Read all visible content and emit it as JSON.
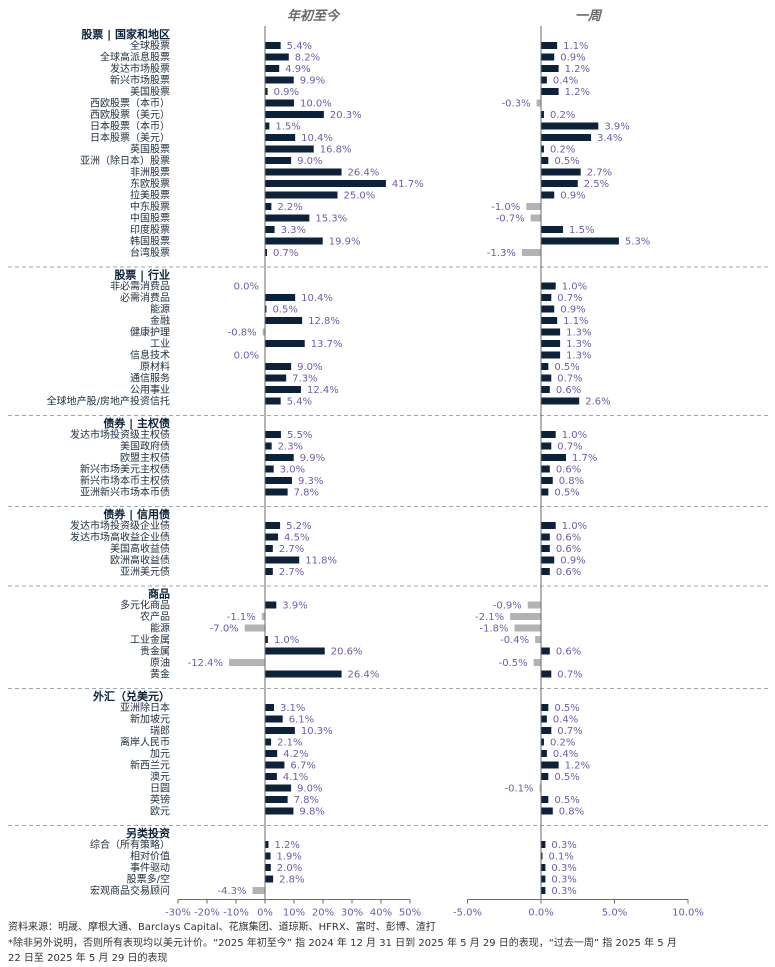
{
  "chart_data": {
    "type": "bar",
    "orientation": "horizontal",
    "panel_titles": [
      "年初至今",
      "一周"
    ],
    "axes": {
      "ytd": {
        "ticks": [
          -30,
          -20,
          -10,
          0,
          10,
          20,
          30,
          40,
          50
        ],
        "tick_labels": [
          "-30%",
          "-20%",
          "-10%",
          "0%",
          "10%",
          "20%",
          "30%",
          "40%",
          "50%"
        ],
        "xlim": [
          -30,
          50
        ]
      },
      "week": {
        "ticks": [
          -5,
          0,
          5,
          10
        ],
        "tick_labels": [
          "-5.0%",
          "0.0%",
          "5.0%",
          "10.0%"
        ],
        "xlim": [
          -5,
          10
        ]
      }
    },
    "colors": {
      "positive": "#0d2239",
      "negative": "#b3b3b3",
      "value_text": "#6b5fa6"
    },
    "groups": [
      {
        "title": "股票 | 国家和地区",
        "rows": [
          {
            "label": "全球股票",
            "ytd": 5.4,
            "week": 1.1
          },
          {
            "label": "全球高派息股票",
            "ytd": 8.2,
            "week": 0.9
          },
          {
            "label": "发达市场股票",
            "ytd": 4.9,
            "week": 1.2
          },
          {
            "label": "新兴市场股票",
            "ytd": 9.9,
            "week": 0.4
          },
          {
            "label": "美国股票",
            "ytd": 0.9,
            "week": 1.2
          },
          {
            "label": "西欧股票（本币）",
            "ytd": 10.0,
            "week": -0.3
          },
          {
            "label": "西欧股票（美元）",
            "ytd": 20.3,
            "week": 0.2
          },
          {
            "label": "日本股票（本币）",
            "ytd": 1.5,
            "week": 3.9
          },
          {
            "label": "日本股票（美元）",
            "ytd": 10.4,
            "week": 3.4
          },
          {
            "label": "英国股票",
            "ytd": 16.8,
            "week": 0.2
          },
          {
            "label": "亚洲（除日本）股票",
            "ytd": 9.0,
            "week": 0.5
          },
          {
            "label": "非洲股票",
            "ytd": 26.4,
            "week": 2.7
          },
          {
            "label": "东欧股票",
            "ytd": 41.7,
            "week": 2.5
          },
          {
            "label": "拉美股票",
            "ytd": 25.0,
            "week": 0.9
          },
          {
            "label": "中东股票",
            "ytd": 2.2,
            "week": -1.0
          },
          {
            "label": "中国股票",
            "ytd": 15.3,
            "week": -0.7
          },
          {
            "label": "印度股票",
            "ytd": 3.3,
            "week": 1.5
          },
          {
            "label": "韩国股票",
            "ytd": 19.9,
            "week": 5.3
          },
          {
            "label": "台湾股票",
            "ytd": 0.7,
            "week": -1.3
          }
        ]
      },
      {
        "title": "股票 | 行业",
        "rows": [
          {
            "label": "非必需消费品",
            "ytd": 0.0,
            "week": 1.0
          },
          {
            "label": "必需消费品",
            "ytd": 10.4,
            "week": 0.7
          },
          {
            "label": "能源",
            "ytd": 0.5,
            "week": 0.9
          },
          {
            "label": "金融",
            "ytd": 12.8,
            "week": 1.1
          },
          {
            "label": "健康护理",
            "ytd": -0.8,
            "week": 1.3
          },
          {
            "label": "工业",
            "ytd": 13.7,
            "week": 1.3
          },
          {
            "label": "信息技术",
            "ytd": 0.0,
            "week": 1.3
          },
          {
            "label": "原材料",
            "ytd": 9.0,
            "week": 0.5
          },
          {
            "label": "通信服务",
            "ytd": 7.3,
            "week": 0.7
          },
          {
            "label": "公用事业",
            "ytd": 12.4,
            "week": 0.6
          },
          {
            "label": "全球地产股/房地产投资信托",
            "ytd": 5.4,
            "week": 2.6
          }
        ]
      },
      {
        "title": "债券 | 主权债",
        "rows": [
          {
            "label": "发达市场投资级主权债",
            "ytd": 5.5,
            "week": 1.0
          },
          {
            "label": "美国政府债",
            "ytd": 2.3,
            "week": 0.7
          },
          {
            "label": "欧盟主权债",
            "ytd": 9.9,
            "week": 1.7
          },
          {
            "label": "新兴市场美元主权债",
            "ytd": 3.0,
            "week": 0.6
          },
          {
            "label": "新兴市场本币主权债",
            "ytd": 9.3,
            "week": 0.8
          },
          {
            "label": "亚洲新兴市场本币债",
            "ytd": 7.8,
            "week": 0.5
          }
        ]
      },
      {
        "title": "债券 | 信用债",
        "rows": [
          {
            "label": "发达市场投资级企业债",
            "ytd": 5.2,
            "week": 1.0
          },
          {
            "label": "发达市场高收益企业债",
            "ytd": 4.5,
            "week": 0.6
          },
          {
            "label": "美国高收益债",
            "ytd": 2.7,
            "week": 0.6
          },
          {
            "label": "欧洲高收益债",
            "ytd": 11.8,
            "week": 0.9
          },
          {
            "label": "亚洲美元债",
            "ytd": 2.7,
            "week": 0.6
          }
        ]
      },
      {
        "title": "商品",
        "rows": [
          {
            "label": "多元化商品",
            "ytd": 3.9,
            "week": -0.9
          },
          {
            "label": "农产品",
            "ytd": -1.1,
            "week": -2.1
          },
          {
            "label": "能源",
            "ytd": -7.0,
            "week": -1.8
          },
          {
            "label": "工业金属",
            "ytd": 1.0,
            "week": -0.4
          },
          {
            "label": "贵金属",
            "ytd": 20.6,
            "week": 0.6
          },
          {
            "label": "原油",
            "ytd": -12.4,
            "week": -0.5
          },
          {
            "label": "黄金",
            "ytd": 26.4,
            "week": 0.7
          }
        ]
      },
      {
        "title": "外汇（兑美元）",
        "rows": [
          {
            "label": "亚洲除日本",
            "ytd": 3.1,
            "week": 0.5
          },
          {
            "label": "新加坡元",
            "ytd": 6.1,
            "week": 0.4
          },
          {
            "label": "瑞郎",
            "ytd": 10.3,
            "week": 0.7
          },
          {
            "label": "离岸人民币",
            "ytd": 2.1,
            "week": 0.2
          },
          {
            "label": "加元",
            "ytd": 4.2,
            "week": 0.4
          },
          {
            "label": "新西兰元",
            "ytd": 6.7,
            "week": 1.2
          },
          {
            "label": "澳元",
            "ytd": 4.1,
            "week": 0.5
          },
          {
            "label": "日圆",
            "ytd": 9.0,
            "week": -0.1
          },
          {
            "label": "英镑",
            "ytd": 7.8,
            "week": 0.5
          },
          {
            "label": "欧元",
            "ytd": 9.8,
            "week": 0.8
          }
        ]
      },
      {
        "title": "另类投资",
        "rows": [
          {
            "label": "综合（所有策略）",
            "ytd": 1.2,
            "week": 0.3
          },
          {
            "label": "相对价值",
            "ytd": 1.9,
            "week": 0.1
          },
          {
            "label": "事件驱动",
            "ytd": 2.0,
            "week": 0.3
          },
          {
            "label": "股票多/空",
            "ytd": 2.8,
            "week": 0.3
          },
          {
            "label": "宏观商品交易顾问",
            "ytd": -4.3,
            "week": 0.3
          }
        ]
      }
    ]
  },
  "footnote": {
    "line1": "资料来源：明晟、摩根大通、Barclays Capital、花旗集团、道琼斯、HFRX、富时、彭博、渣打",
    "line2": "*除非另外说明，否则所有表现均以美元计价。“2025 年初至今” 指 2024 年 12 月 31 日到 2025 年 5 月 29 日的表现，“过去一周” 指 2025 年 5 月",
    "line3": "22 日至 2025 年 5 月 29 日的表现"
  }
}
